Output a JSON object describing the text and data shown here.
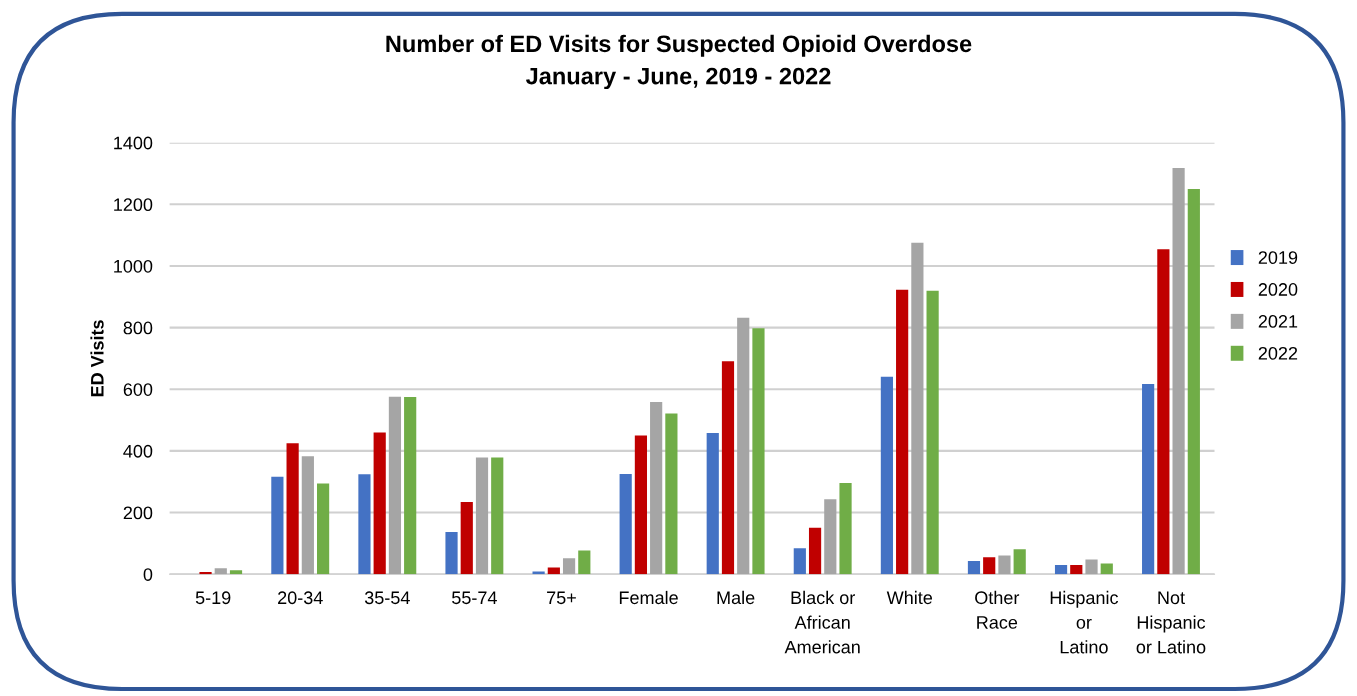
{
  "chart_data": {
    "type": "bar",
    "title": "Number of ED Visits for Suspected Opioid Overdose\nJanuary - June, 2019 - 2022",
    "ylabel": "ED Visits",
    "categories": [
      "5-19",
      "20-34",
      "35-54",
      "55-74",
      "75+",
      "Female",
      "Male",
      "Black or\nAfrican\nAmerican",
      "White",
      "Other\nRace",
      "Hispanic\nor\nLatino",
      "Not\nHispanic\nor Latino"
    ],
    "series": [
      {
        "name": "2019",
        "color": "#4472c4",
        "values": [
          null,
          316,
          324,
          137,
          9,
          325,
          458,
          84,
          641,
          43,
          30,
          617
        ]
      },
      {
        "name": "2020",
        "color": "#c00000",
        "values": [
          7,
          425,
          460,
          234,
          22,
          450,
          691,
          151,
          923,
          55,
          30,
          1054
        ]
      },
      {
        "name": "2021",
        "color": "#a5a5a5",
        "values": [
          19,
          383,
          576,
          379,
          52,
          559,
          832,
          243,
          1075,
          61,
          48,
          1318
        ]
      },
      {
        "name": "2022",
        "color": "#70ad47",
        "values": [
          13,
          294,
          575,
          379,
          77,
          521,
          798,
          296,
          920,
          81,
          35,
          1250
        ]
      }
    ],
    "ylim": [
      0,
      1400
    ],
    "yticks": [
      0,
      200,
      400,
      600,
      800,
      1000,
      1200,
      1400
    ],
    "grid": "y",
    "legend": "right"
  }
}
